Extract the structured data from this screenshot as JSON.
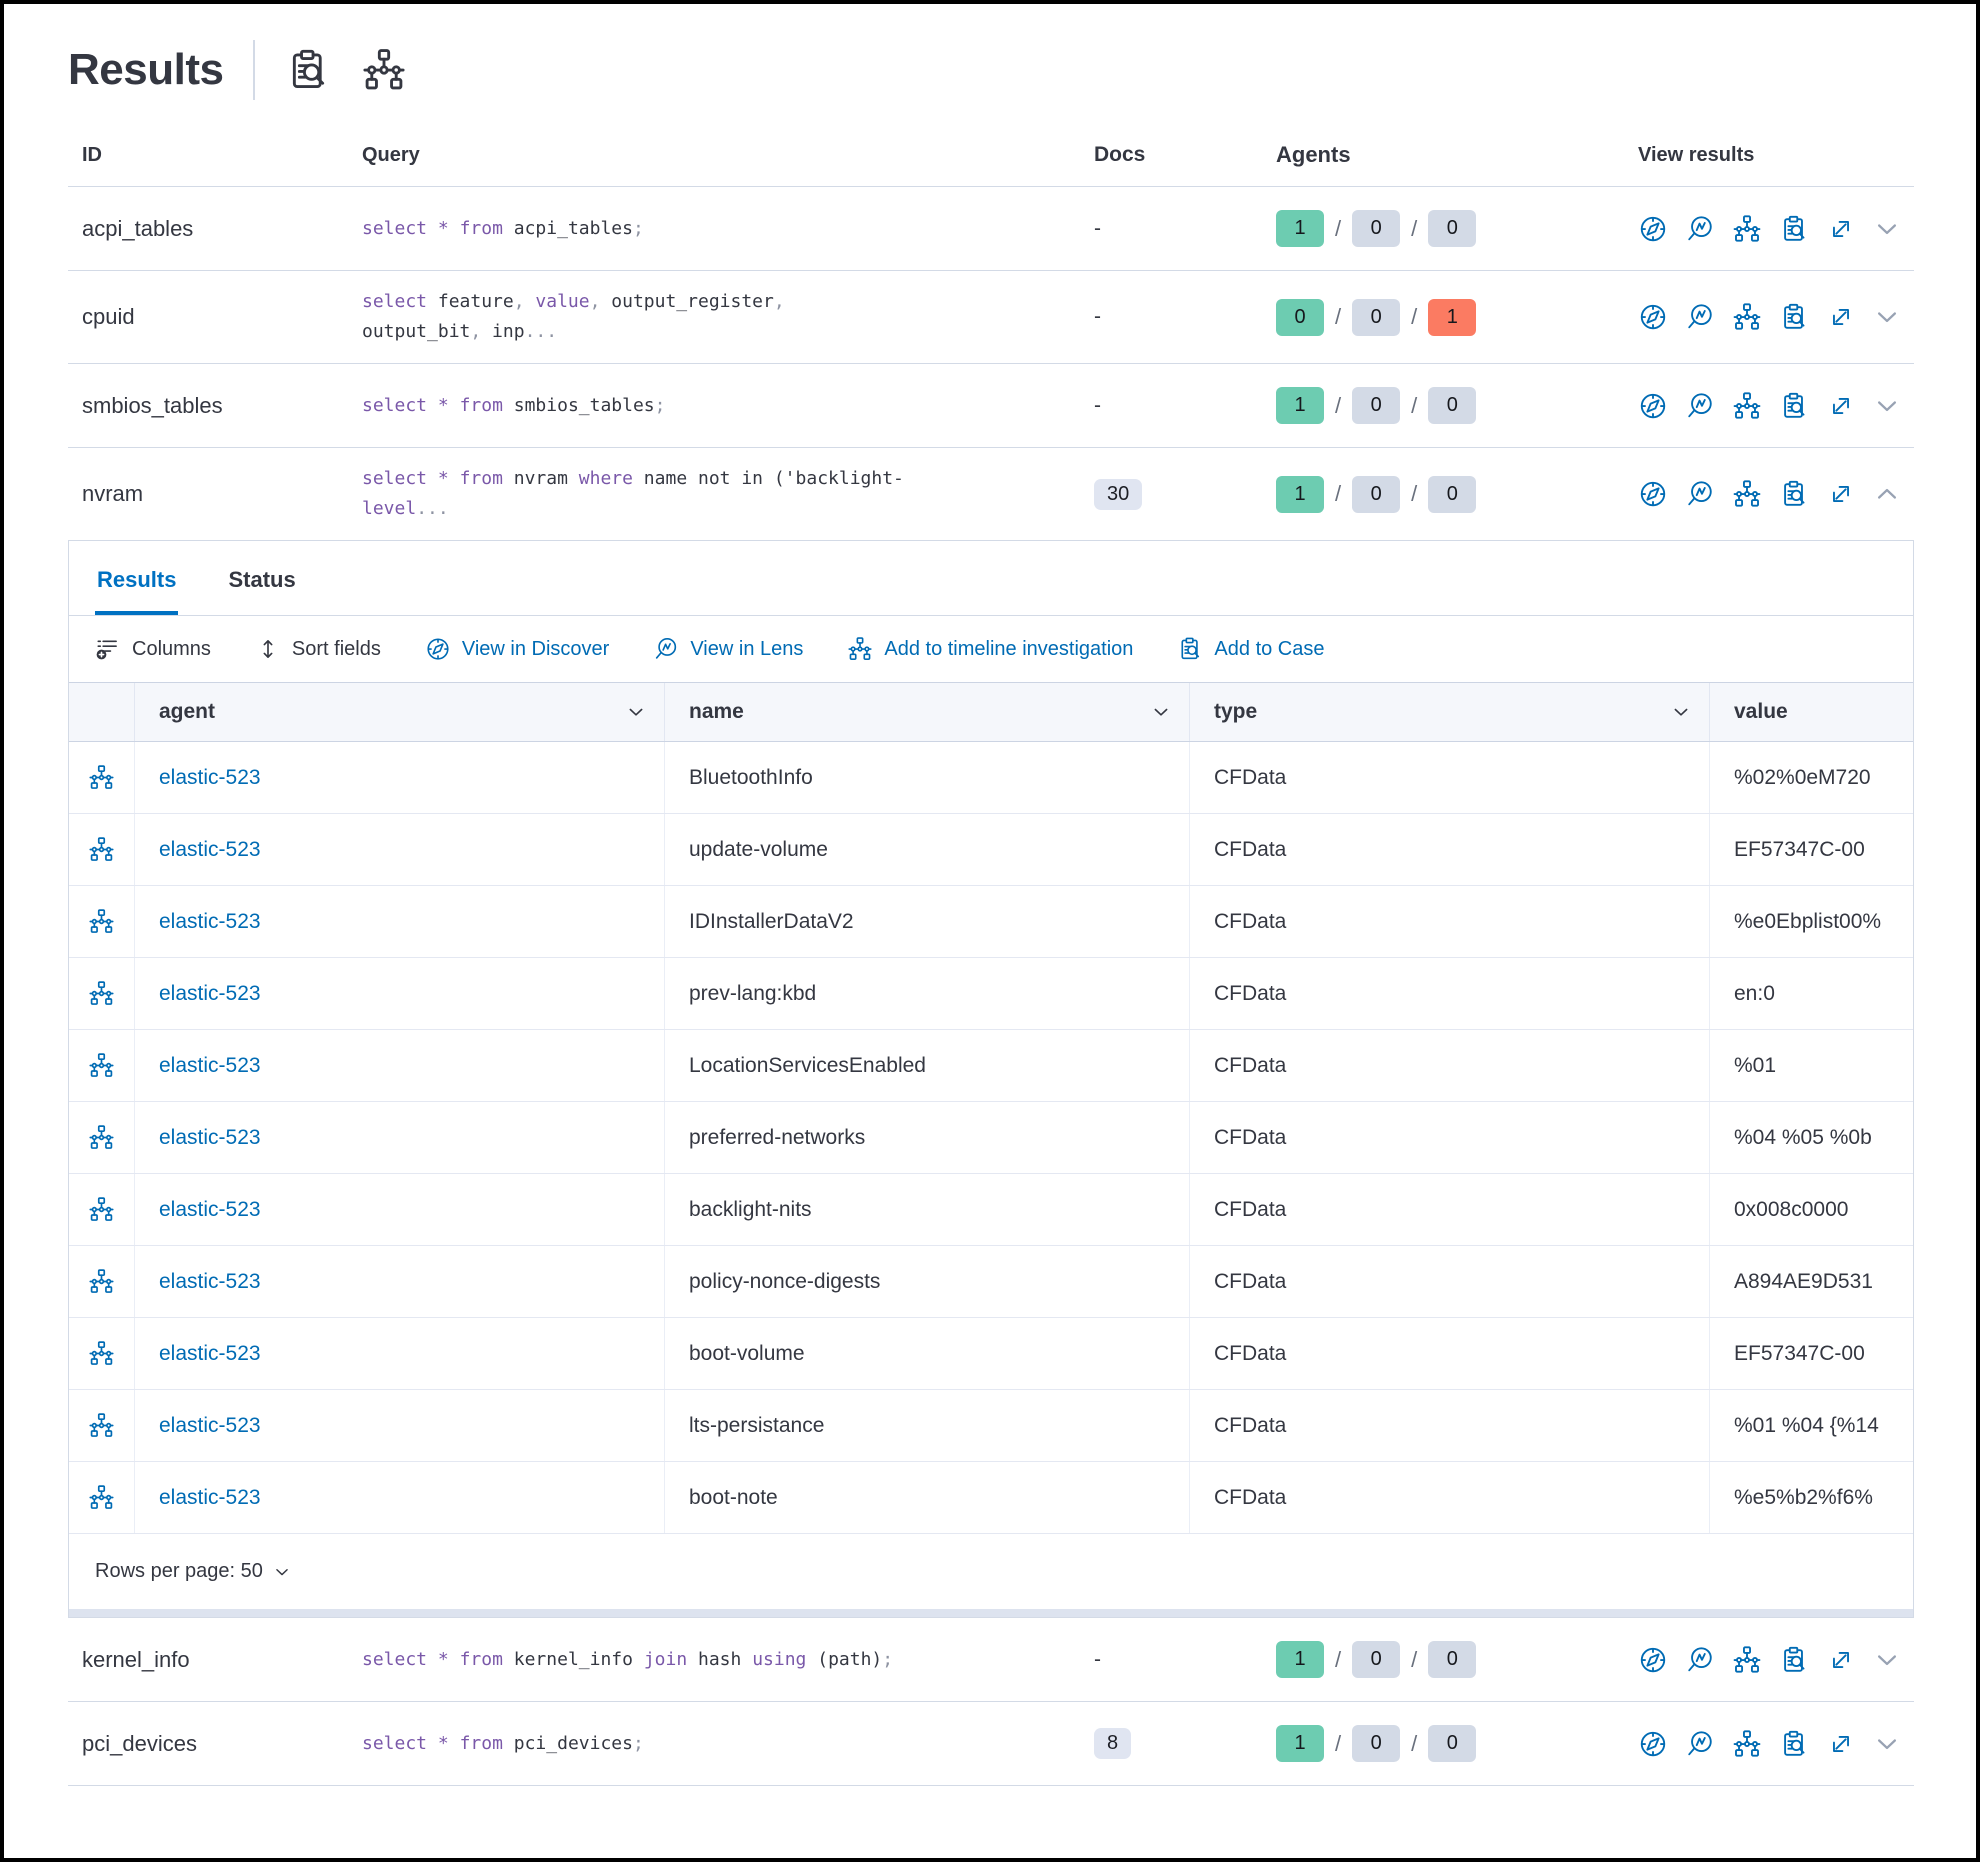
{
  "title": "Results",
  "colors": {
    "accent_blue": "#0071c2",
    "link_blue": "#006bb4",
    "keyword_purple": "#7a58a9",
    "badge_green": "#6dccb1",
    "badge_gray": "#d3dae6",
    "badge_red": "#fb7b62",
    "border": "#d3dae6"
  },
  "table": {
    "headers": {
      "id": "ID",
      "query": "Query",
      "docs": "Docs",
      "agents": "Agents",
      "view": "View results"
    },
    "rows": [
      {
        "id": "acpi_tables",
        "docs": "-",
        "agents": [
          "1",
          "0",
          "0"
        ],
        "query": [
          {
            "c": "k",
            "t": "select"
          },
          {
            "t": " "
          },
          {
            "c": "k",
            "t": "*"
          },
          {
            "t": " "
          },
          {
            "c": "k",
            "t": "from"
          },
          {
            "t": " acpi_tables"
          },
          {
            "c": "p",
            "t": ";"
          }
        ]
      },
      {
        "id": "cpuid",
        "docs": "-",
        "agents": [
          "0",
          "0",
          "1"
        ],
        "query": [
          {
            "c": "k",
            "t": "select"
          },
          {
            "t": " feature"
          },
          {
            "c": "p",
            "t": ","
          },
          {
            "t": " "
          },
          {
            "c": "k",
            "t": "value"
          },
          {
            "c": "p",
            "t": ","
          },
          {
            "t": " output_register"
          },
          {
            "c": "p",
            "t": ","
          },
          {
            "t": " output_bit"
          },
          {
            "c": "p",
            "t": ","
          },
          {
            "t": " inp"
          },
          {
            "c": "p",
            "t": "..."
          }
        ]
      },
      {
        "id": "smbios_tables",
        "docs": "-",
        "agents": [
          "1",
          "0",
          "0"
        ],
        "query": [
          {
            "c": "k",
            "t": "select"
          },
          {
            "t": " "
          },
          {
            "c": "k",
            "t": "*"
          },
          {
            "t": " "
          },
          {
            "c": "k",
            "t": "from"
          },
          {
            "t": " smbios_tables"
          },
          {
            "c": "p",
            "t": ";"
          }
        ]
      },
      {
        "id": "nvram",
        "docs_badge": "30",
        "agents": [
          "1",
          "0",
          "0"
        ],
        "query": [
          {
            "c": "k",
            "t": "select"
          },
          {
            "t": " "
          },
          {
            "c": "k",
            "t": "*"
          },
          {
            "t": " "
          },
          {
            "c": "k",
            "t": "from"
          },
          {
            "t": " nvram "
          },
          {
            "c": "k",
            "t": "where"
          },
          {
            "t": " name not in ('backlight-"
          },
          {
            "c": "k",
            "t": "level"
          },
          {
            "c": "p",
            "t": "..."
          }
        ]
      },
      {
        "id": "kernel_info",
        "docs": "-",
        "agents": [
          "1",
          "0",
          "0"
        ],
        "query": [
          {
            "c": "k",
            "t": "select"
          },
          {
            "t": " "
          },
          {
            "c": "k",
            "t": "*"
          },
          {
            "t": " "
          },
          {
            "c": "k",
            "t": "from"
          },
          {
            "t": " kernel_info "
          },
          {
            "c": "k",
            "t": "join"
          },
          {
            "t": " hash "
          },
          {
            "c": "k",
            "t": "using"
          },
          {
            "t": " (path)"
          },
          {
            "c": "p",
            "t": ";"
          }
        ]
      },
      {
        "id": "pci_devices",
        "docs_badge": "8",
        "agents": [
          "1",
          "0",
          "0"
        ],
        "query": [
          {
            "c": "k",
            "t": "select"
          },
          {
            "t": " "
          },
          {
            "c": "k",
            "t": "*"
          },
          {
            "t": " "
          },
          {
            "c": "k",
            "t": "from"
          },
          {
            "t": " pci_devices"
          },
          {
            "c": "p",
            "t": ";"
          }
        ]
      }
    ]
  },
  "panel": {
    "tabs": [
      {
        "label": "Results"
      },
      {
        "label": "Status"
      }
    ],
    "toolbar": {
      "columns": "Columns",
      "sort": "Sort fields",
      "discover": "View in Discover",
      "lens": "View in Lens",
      "timeline": "Add to timeline investigation",
      "case": "Add to Case"
    },
    "grid": {
      "headers": {
        "agent": "agent",
        "name": "name",
        "type": "type",
        "value": "value"
      },
      "rows": [
        {
          "agent": "elastic-523",
          "name": "BluetoothInfo",
          "type": "CFData",
          "value": "%02%0eM720"
        },
        {
          "agent": "elastic-523",
          "name": "update-volume",
          "type": "CFData",
          "value": "EF57347C-00"
        },
        {
          "agent": "elastic-523",
          "name": "IDInstallerDataV2",
          "type": "CFData",
          "value": "%e0Ebplist00%"
        },
        {
          "agent": "elastic-523",
          "name": "prev-lang:kbd",
          "type": "CFData",
          "value": "en:0"
        },
        {
          "agent": "elastic-523",
          "name": "LocationServicesEnabled",
          "type": "CFData",
          "value": "%01"
        },
        {
          "agent": "elastic-523",
          "name": "preferred-networks",
          "type": "CFData",
          "value": "%04 %05 %0b"
        },
        {
          "agent": "elastic-523",
          "name": "backlight-nits",
          "type": "CFData",
          "value": "0x008c0000"
        },
        {
          "agent": "elastic-523",
          "name": "policy-nonce-digests",
          "type": "CFData",
          "value": "A894AE9D531"
        },
        {
          "agent": "elastic-523",
          "name": "boot-volume",
          "type": "CFData",
          "value": "EF57347C-00"
        },
        {
          "agent": "elastic-523",
          "name": "lts-persistance",
          "type": "CFData",
          "value": "%01 %04 {%14"
        },
        {
          "agent": "elastic-523",
          "name": "boot-note",
          "type": "CFData",
          "value": "%e5%b2%f6%"
        }
      ]
    },
    "pagination": {
      "rows_per_page": "Rows per page: 50"
    }
  }
}
